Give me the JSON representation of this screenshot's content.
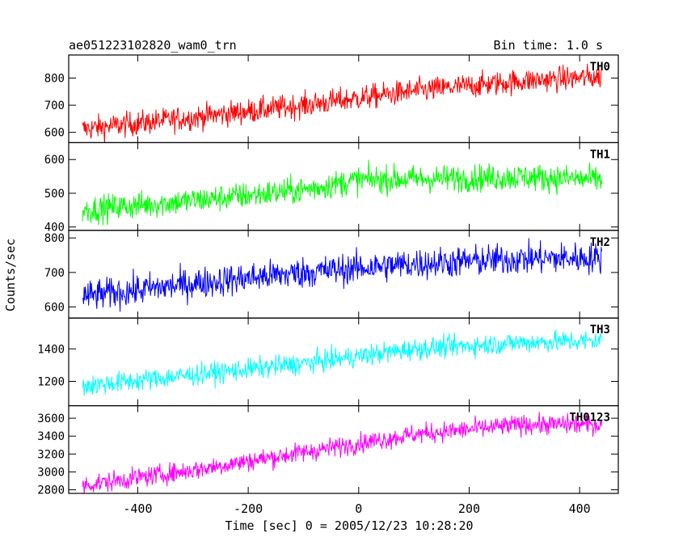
{
  "header": {
    "title": "ae051223102820_wam0_trn",
    "bin_time": "Bin time: 1.0 s"
  },
  "axes": {
    "ylabel": "Counts/sec",
    "xlabel": "Time [sec] 0 = 2005/12/23 10:28:20"
  },
  "chart_data": {
    "type": "line",
    "title": "ae051223102820_wam0_trn",
    "xlabel": "Time [sec] 0 = 2005/12/23 10:28:20",
    "ylabel": "Counts/sec",
    "xlim": [
      -525,
      470
    ],
    "x_ticks": [
      -400,
      -200,
      0,
      200,
      400
    ],
    "x_step": 1,
    "x_range": [
      -500,
      440
    ],
    "legend": "none",
    "panels": [
      {
        "name": "TH0",
        "color": "#ff0000",
        "ylim": [
          562,
          885
        ],
        "y_ticks": [
          600,
          700,
          800
        ],
        "trend_x": [
          -500,
          -300,
          -100,
          100,
          300,
          440
        ],
        "trend_y": [
          612,
          655,
          700,
          752,
          790,
          805
        ],
        "noise": 45
      },
      {
        "name": "TH1",
        "color": "#00ff00",
        "ylim": [
          390,
          650
        ],
        "y_ticks": [
          400,
          500,
          600
        ],
        "trend_x": [
          -500,
          -300,
          -100,
          0,
          100,
          300,
          440
        ],
        "trend_y": [
          450,
          478,
          510,
          540,
          542,
          548,
          540
        ],
        "noise": 40
      },
      {
        "name": "TH2",
        "color": "#0000ff",
        "ylim": [
          568,
          822
        ],
        "y_ticks": [
          600,
          700,
          800
        ],
        "trend_x": [
          -500,
          -300,
          -100,
          100,
          300,
          440
        ],
        "trend_y": [
          630,
          668,
          700,
          725,
          740,
          742
        ],
        "noise": 45
      },
      {
        "name": "TH3",
        "color": "#00ffff",
        "ylim": [
          1050,
          1590
        ],
        "y_ticks": [
          1200,
          1400
        ],
        "trend_x": [
          -500,
          -300,
          -100,
          100,
          300,
          440
        ],
        "trend_y": [
          1170,
          1240,
          1310,
          1400,
          1440,
          1450
        ],
        "noise": 65
      },
      {
        "name": "TH0123",
        "color": "#ff00ff",
        "ylim": [
          2760,
          3740
        ],
        "y_ticks": [
          2800,
          3000,
          3200,
          3400,
          3600
        ],
        "trend_x": [
          -500,
          -300,
          -100,
          100,
          300,
          440
        ],
        "trend_y": [
          2850,
          3020,
          3220,
          3420,
          3530,
          3530
        ],
        "noise": 110
      }
    ]
  }
}
